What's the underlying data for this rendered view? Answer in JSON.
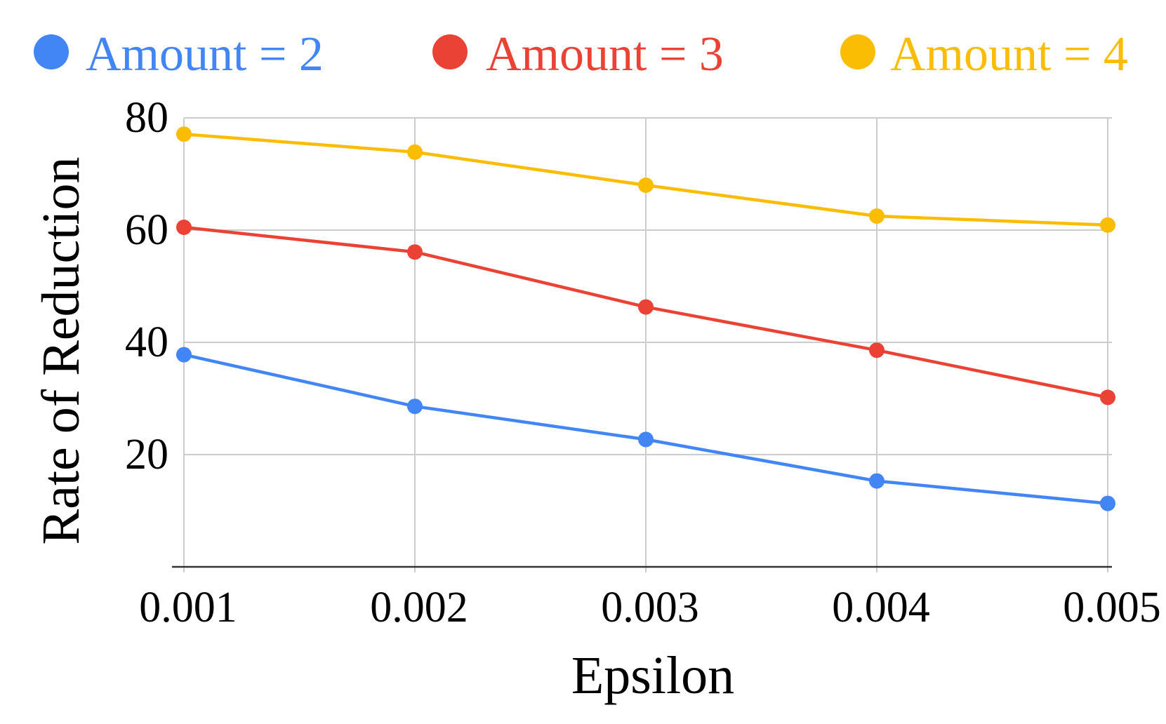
{
  "chart_data": {
    "type": "line",
    "title": "",
    "xlabel": "Epsilon",
    "ylabel": "Rate of Reduction",
    "x": [
      0.001,
      0.002,
      0.003,
      0.004,
      0.005
    ],
    "x_tick_labels": [
      "0.001",
      "0.002",
      "0.003",
      "0.004",
      "0.005"
    ],
    "y_ticks": [
      20,
      40,
      60,
      80
    ],
    "y_tick_labels": [
      "20",
      "40",
      "60",
      "80"
    ],
    "ylim": [
      0,
      80
    ],
    "grid": true,
    "legend_position": "top",
    "series": [
      {
        "name": "Amount = 2",
        "color": "#4285f4",
        "values": [
          37.8,
          28.6,
          22.7,
          15.3,
          11.3
        ]
      },
      {
        "name": "Amount = 3",
        "color": "#ea4335",
        "values": [
          60.5,
          56.1,
          46.3,
          38.6,
          30.2
        ]
      },
      {
        "name": "Amount = 4",
        "color": "#fbbc04",
        "values": [
          77.1,
          73.9,
          68.0,
          62.5,
          60.9
        ]
      }
    ]
  }
}
